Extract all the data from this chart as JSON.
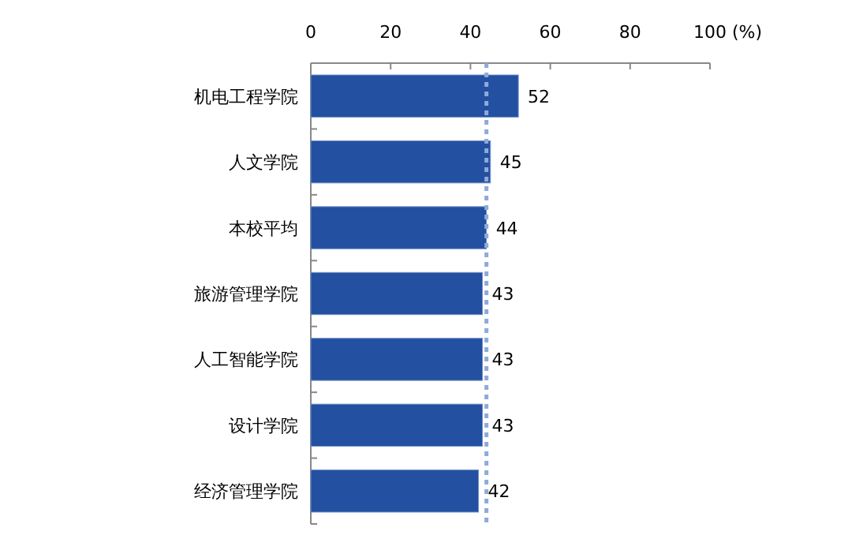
{
  "chart_data": {
    "type": "bar",
    "orientation": "horizontal",
    "xlabel": "(%)",
    "categories": [
      "机电工程学院",
      "人文学院",
      "本校平均",
      "旅游管理学院",
      "人工智能学院",
      "设计学院",
      "经济管理学院"
    ],
    "values": [
      52,
      45,
      44,
      43,
      43,
      43,
      42
    ],
    "color": "#2350a0",
    "xlim": [
      0,
      100
    ],
    "xticks": [
      0,
      20,
      40,
      60,
      80,
      100
    ],
    "grid": false,
    "data_labels": true,
    "ref_lines": [
      {
        "axis": "x",
        "value": 44,
        "color": "#8eaadb",
        "line_style": "dotted"
      }
    ]
  }
}
